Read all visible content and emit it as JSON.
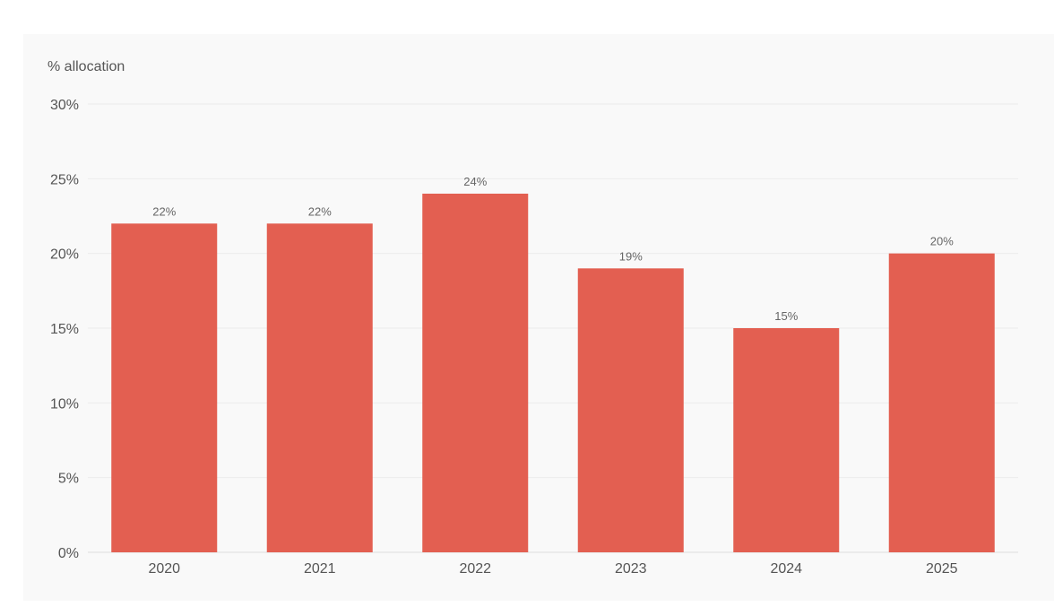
{
  "chart_data": {
    "type": "bar",
    "title": "",
    "xlabel": "",
    "ylabel": "% allocation",
    "categories": [
      "2020",
      "2021",
      "2022",
      "2023",
      "2024",
      "2025"
    ],
    "values": [
      22,
      22,
      24,
      19,
      15,
      20
    ],
    "data_labels": [
      "22%",
      "22%",
      "24%",
      "19%",
      "15%",
      "20%"
    ],
    "ylim": [
      0,
      30
    ],
    "yticks": [
      0,
      5,
      10,
      15,
      20,
      25,
      30
    ],
    "ytick_labels": [
      "0%",
      "5%",
      "10%",
      "15%",
      "20%",
      "25%",
      "30%"
    ],
    "bar_color": "#e35f51",
    "grid": true,
    "legend": "none"
  }
}
